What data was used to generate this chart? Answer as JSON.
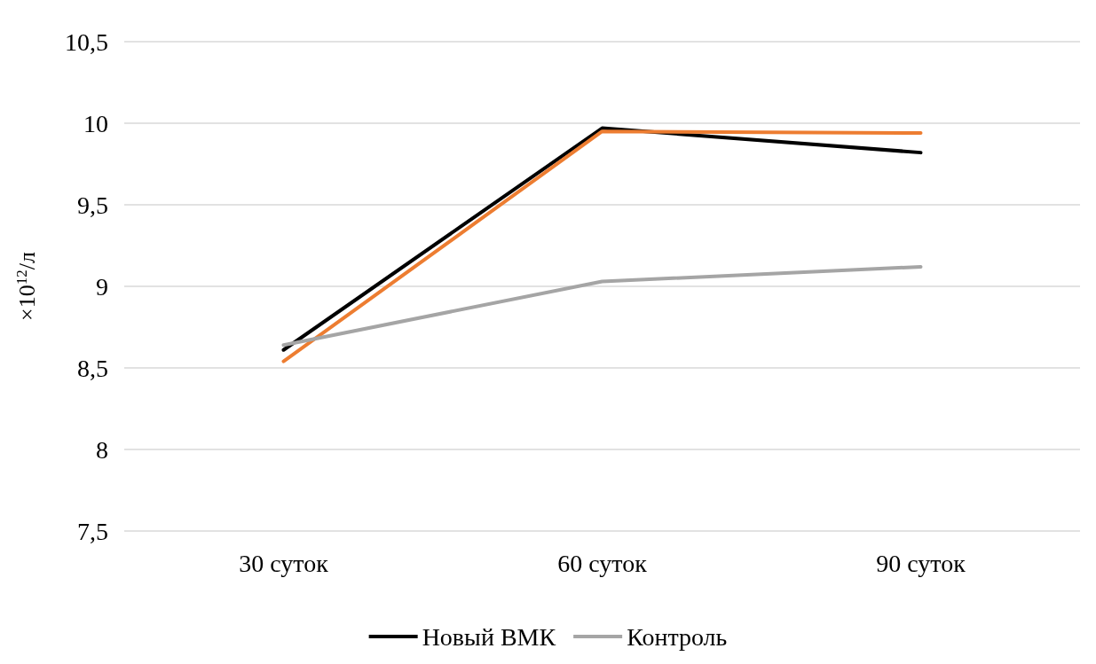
{
  "chart_data": {
    "type": "line",
    "ylabel": "×10$^{12}$/л",
    "categories": [
      "30 суток",
      "60 суток",
      "90 суток"
    ],
    "series": [
      {
        "name": "Новый ВМК",
        "color": "#000000",
        "values": [
          8.61,
          9.97,
          9.82
        ]
      },
      {
        "color": "#ed7d31",
        "values": [
          8.54,
          9.95,
          9.94
        ]
      },
      {
        "name": "Контроль",
        "color": "#a5a5a5",
        "values": [
          8.64,
          9.03,
          9.12
        ]
      }
    ],
    "ylim": [
      7.5,
      10.5
    ],
    "yticks": [
      {
        "value": 7.5,
        "label": "7,5"
      },
      8,
      {
        "value": 8.5,
        "label": "8,5"
      },
      9,
      {
        "value": 9.5,
        "label": "9,5"
      },
      10,
      {
        "value": 10.5,
        "label": "10,5"
      }
    ],
    "grid": "y",
    "legend": "bottom",
    "marker": "none",
    "line_style": "solid"
  }
}
